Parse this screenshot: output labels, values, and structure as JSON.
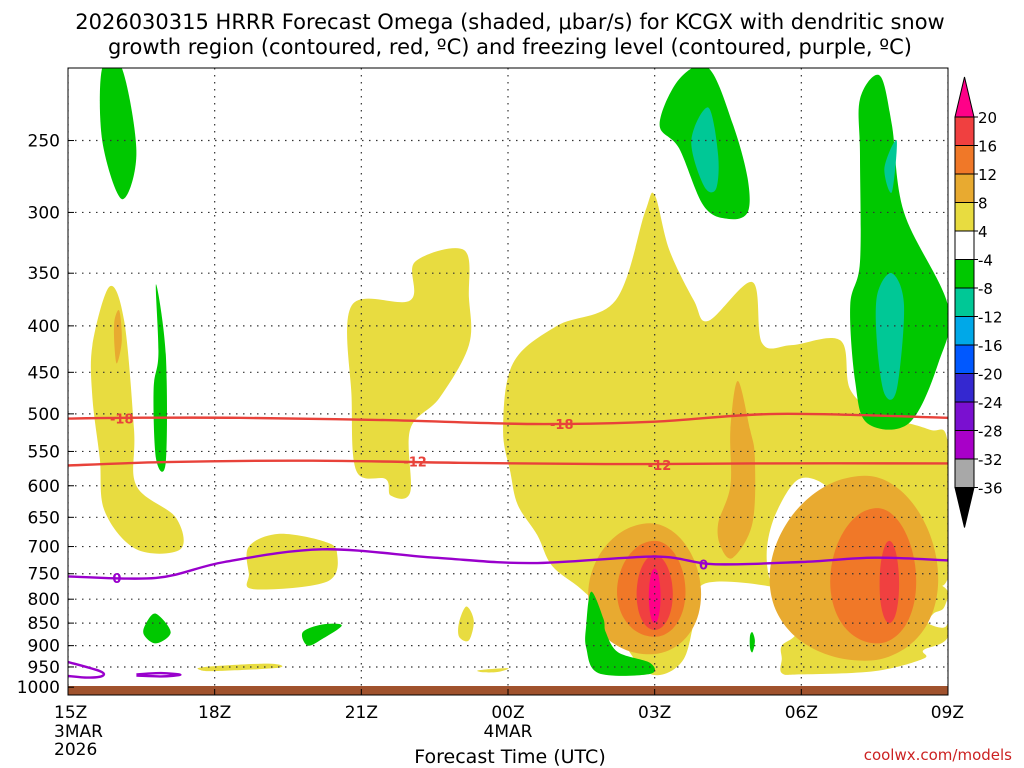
{
  "chart_data": {
    "type": "heatmap",
    "title_line1": "2026030315 HRRR Forecast Omega (shaded, μbar/s) for KCGX with dendritic snow",
    "title_line2": "growth region (contoured, red, ºC) and freezing level (contoured, purple, ºC)",
    "xlabel": "Forecast Time (UTC)",
    "ylabel": "",
    "credit": "coolwx.com/models",
    "x_range": [
      0,
      18
    ],
    "x_ticks": [
      {
        "x": 0,
        "label": "15Z",
        "sub1": "3MAR",
        "sub2": "2026"
      },
      {
        "x": 3,
        "label": "18Z",
        "sub1": "",
        "sub2": ""
      },
      {
        "x": 6,
        "label": "21Z",
        "sub1": "",
        "sub2": ""
      },
      {
        "x": 9,
        "label": "00Z",
        "sub1": "4MAR",
        "sub2": ""
      },
      {
        "x": 12,
        "label": "03Z",
        "sub1": "",
        "sub2": ""
      },
      {
        "x": 15,
        "label": "06Z",
        "sub1": "",
        "sub2": ""
      },
      {
        "x": 18,
        "label": "09Z",
        "sub1": "",
        "sub2": ""
      }
    ],
    "y_unit": "hPa",
    "y_ticks": [
      250,
      300,
      350,
      400,
      450,
      500,
      550,
      600,
      650,
      700,
      750,
      800,
      850,
      900,
      950,
      1000
    ],
    "y_top": 208,
    "y_bottom": 1020,
    "ground_pressure": 997,
    "colorbar": {
      "labels": [
        "20",
        "16",
        "12",
        "8",
        "4",
        "-4",
        "-8",
        "-12",
        "-16",
        "-20",
        "-24",
        "-28",
        "-32",
        "-36"
      ],
      "colors": [
        "#ff0088",
        "#f04040",
        "#f07828",
        "#e8aa30",
        "#e8dc40",
        "#ffffff",
        "#00c800",
        "#00c896",
        "#00a8e8",
        "#0058ff",
        "#3428d0",
        "#7a10d0",
        "#a800c8",
        "#a8a8a8",
        "#000000"
      ]
    },
    "omega_regions": [
      {
        "name": "up-left-upper",
        "value": -6,
        "pts": [
          [
            0.7,
            208
          ],
          [
            1.1,
            208
          ],
          [
            1.4,
            258
          ],
          [
            1.1,
            290
          ],
          [
            0.7,
            250
          ]
        ]
      },
      {
        "name": "up-left-mid",
        "value": -6,
        "pts": [
          [
            1.8,
            360
          ],
          [
            2.0,
            430
          ],
          [
            2.0,
            565
          ],
          [
            1.8,
            560
          ],
          [
            1.75,
            470
          ],
          [
            1.85,
            430
          ]
        ]
      },
      {
        "name": "up-low-1",
        "value": -6,
        "pts": [
          [
            1.6,
            850
          ],
          [
            1.8,
            830
          ],
          [
            2.1,
            870
          ],
          [
            1.8,
            895
          ],
          [
            1.55,
            875
          ]
        ]
      },
      {
        "name": "up-low-2",
        "value": -6,
        "pts": [
          [
            4.8,
            870
          ],
          [
            5.2,
            853
          ],
          [
            5.6,
            855
          ],
          [
            5.2,
            885
          ],
          [
            4.9,
            900
          ]
        ]
      },
      {
        "name": "up-low-3",
        "value": -6,
        "pts": [
          [
            10.7,
            785
          ],
          [
            10.95,
            840
          ],
          [
            11.0,
            870
          ],
          [
            11.25,
            915
          ],
          [
            11.9,
            940
          ],
          [
            11.9,
            967
          ],
          [
            10.85,
            965
          ],
          [
            10.6,
            905
          ],
          [
            10.6,
            855
          ]
        ]
      },
      {
        "name": "up-low-4",
        "value": -6,
        "pts": [
          [
            13.95,
            878
          ],
          [
            14.0,
            870
          ],
          [
            14.05,
            890
          ],
          [
            14.0,
            915
          ],
          [
            13.95,
            905
          ]
        ]
      },
      {
        "name": "up-top-right-a",
        "value": -6,
        "pts": [
          [
            12.1,
            240
          ],
          [
            12.5,
            214
          ],
          [
            13.1,
            208
          ],
          [
            13.6,
            240
          ],
          [
            13.9,
            275
          ],
          [
            13.9,
            300
          ],
          [
            13.5,
            305
          ],
          [
            13.0,
            295
          ],
          [
            12.5,
            255
          ]
        ]
      },
      {
        "name": "up-top-right-a-inner",
        "value": -10,
        "pts": [
          [
            12.75,
            250
          ],
          [
            13.1,
            230
          ],
          [
            13.3,
            260
          ],
          [
            13.25,
            283
          ],
          [
            13.0,
            280
          ]
        ]
      },
      {
        "name": "up-top-right-b",
        "value": -6,
        "pts": [
          [
            16.2,
            225
          ],
          [
            16.6,
            212
          ],
          [
            16.85,
            240
          ],
          [
            17.1,
            300
          ],
          [
            18.0,
            380
          ],
          [
            17.8,
            440
          ],
          [
            17.2,
            512
          ],
          [
            16.35,
            512
          ],
          [
            16.1,
            460
          ],
          [
            16.0,
            380
          ],
          [
            16.2,
            340
          ],
          [
            16.2,
            260
          ]
        ]
      },
      {
        "name": "up-top-right-b-inner1",
        "value": -10,
        "pts": [
          [
            16.7,
            268
          ],
          [
            16.95,
            250
          ],
          [
            16.85,
            285
          ]
        ]
      },
      {
        "name": "up-top-right-b-inner2",
        "value": -10,
        "pts": [
          [
            16.55,
            370
          ],
          [
            16.85,
            350
          ],
          [
            17.1,
            380
          ],
          [
            16.95,
            470
          ],
          [
            16.7,
            475
          ],
          [
            16.55,
            420
          ]
        ]
      }
    ],
    "contours": [
      {
        "name": "dgz-minus-18",
        "level": -18,
        "color": "#e8423a",
        "pts": [
          [
            0,
            506
          ],
          [
            1.2,
            505
          ],
          [
            3.5,
            505
          ],
          [
            6.5,
            508
          ],
          [
            9.5,
            513
          ],
          [
            12,
            510
          ],
          [
            14.5,
            500
          ],
          [
            18,
            505
          ]
        ],
        "labels": [
          {
            "x": 1.1,
            "p": 506,
            "text": "-18"
          },
          {
            "x": 10.1,
            "p": 513,
            "text": "-18"
          }
        ]
      },
      {
        "name": "dgz-minus-12",
        "level": -12,
        "color": "#e8423a",
        "pts": [
          [
            0,
            570
          ],
          [
            2,
            565
          ],
          [
            5,
            563
          ],
          [
            8,
            566
          ],
          [
            11,
            568
          ],
          [
            14,
            567
          ],
          [
            18,
            567
          ]
        ],
        "labels": [
          {
            "x": 7.1,
            "p": 564,
            "text": "-12"
          },
          {
            "x": 12.1,
            "p": 569,
            "text": "-12"
          }
        ]
      },
      {
        "name": "freezing-level-0",
        "level": 0,
        "color": "#9900cc",
        "pts": [
          [
            0,
            755
          ],
          [
            1.8,
            758
          ],
          [
            3.2,
            728
          ],
          [
            5.2,
            705
          ],
          [
            7.5,
            720
          ],
          [
            9.5,
            730
          ],
          [
            12,
            718
          ],
          [
            13.2,
            732
          ],
          [
            15.0,
            728
          ],
          [
            16.5,
            720
          ],
          [
            18,
            725
          ]
        ],
        "labels": [
          {
            "x": 1.0,
            "p": 758,
            "text": "0"
          },
          {
            "x": 13.0,
            "p": 733,
            "text": "0"
          }
        ]
      },
      {
        "name": "freezing-level-0-lower",
        "level": 0,
        "color": "#9900cc",
        "pts": [
          [
            0,
            938
          ],
          [
            0.65,
            960
          ],
          [
            0.7,
            972
          ],
          [
            0.4,
            976
          ],
          [
            0,
            972
          ]
        ],
        "labels": []
      },
      {
        "name": "freezing-level-0-loop",
        "level": 0,
        "color": "#9900cc",
        "pts": [
          [
            1.4,
            968
          ],
          [
            1.9,
            965
          ],
          [
            2.3,
            969
          ],
          [
            1.9,
            973
          ],
          [
            1.4,
            971
          ]
        ],
        "labels": []
      }
    ]
  }
}
